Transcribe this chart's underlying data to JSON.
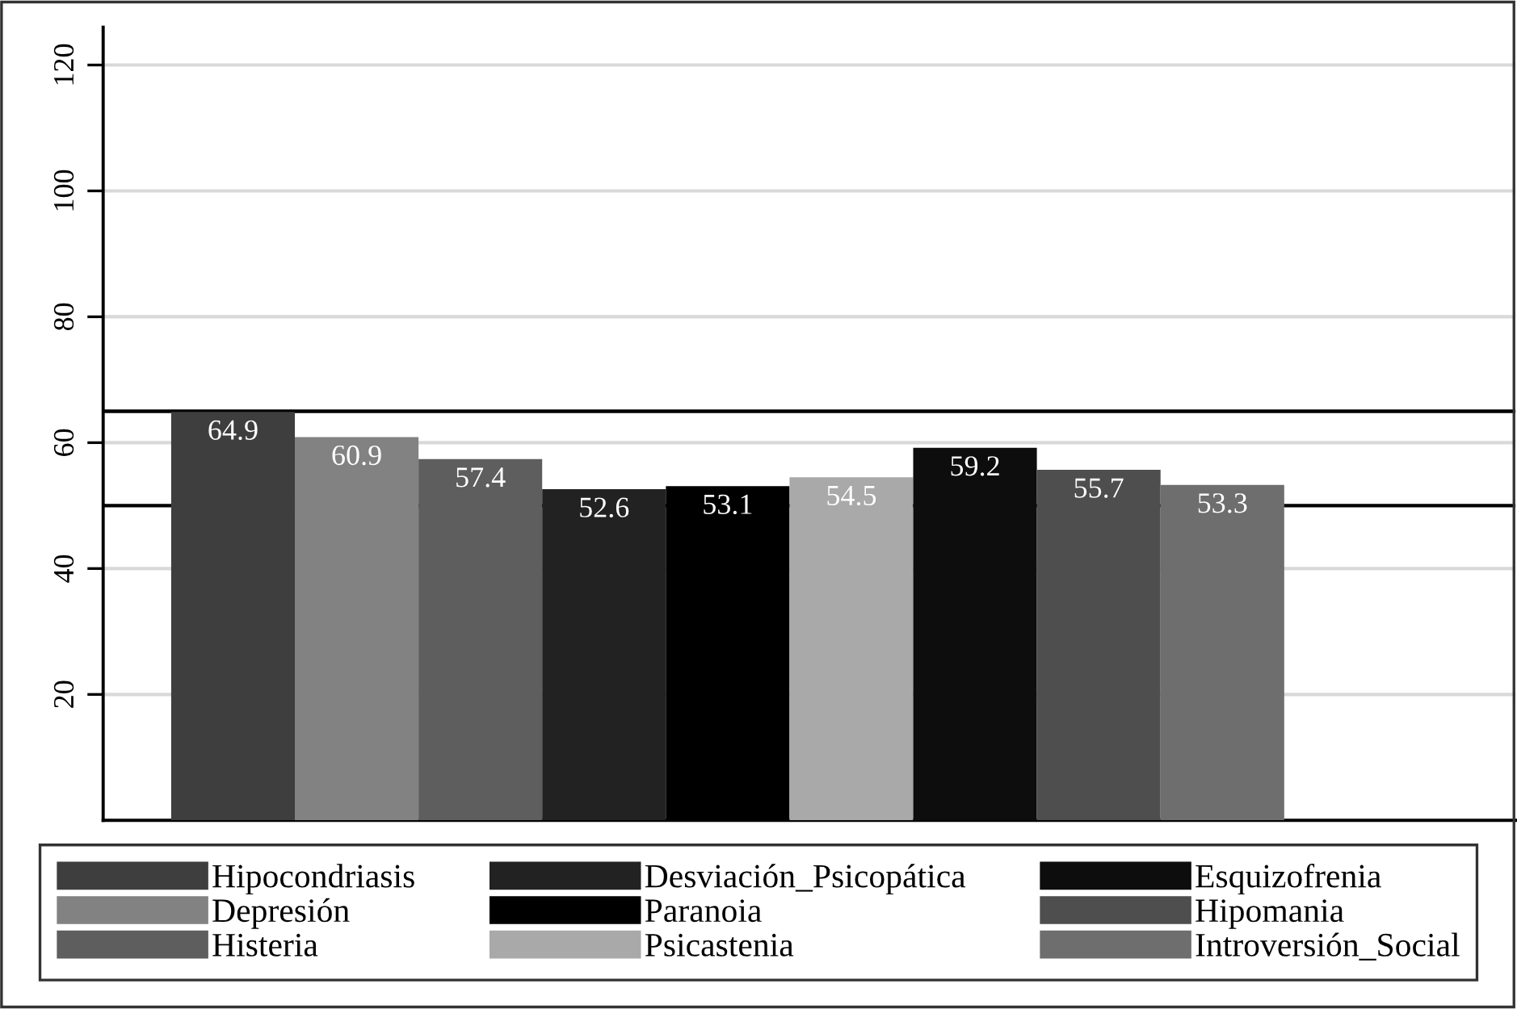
{
  "chart_data": {
    "type": "bar",
    "categories": [
      null
    ],
    "series": [
      {
        "name": "Hipocondriasis",
        "color": "#3e3e3e",
        "values": [
          64.9
        ]
      },
      {
        "name": "Depresión",
        "color": "#828282",
        "values": [
          60.9
        ]
      },
      {
        "name": "Histeria",
        "color": "#5e5e5e",
        "values": [
          57.4
        ]
      },
      {
        "name": "Desviación_Psicopática",
        "color": "#222222",
        "values": [
          52.6
        ]
      },
      {
        "name": "Paranoia",
        "color": "#000000",
        "values": [
          53.1
        ]
      },
      {
        "name": "Psicastenia",
        "color": "#a9a9a9",
        "values": [
          54.5
        ]
      },
      {
        "name": "Esquizofrenia",
        "color": "#0d0d0d",
        "values": [
          59.2
        ]
      },
      {
        "name": "Hipomania",
        "color": "#4e4e4e",
        "values": [
          55.7
        ]
      },
      {
        "name": "Introversión_Social",
        "color": "#6e6e6e",
        "values": [
          53.3
        ]
      }
    ],
    "ylim": [
      0,
      126
    ],
    "yticks": [
      20,
      40,
      60,
      80,
      100,
      120
    ],
    "ref_lines": [
      {
        "axis": "y",
        "value": 65,
        "color": "#000000"
      },
      {
        "axis": "y",
        "value": 50,
        "color": "#000000"
      }
    ],
    "data_labels": true,
    "grid": "y",
    "legend": "bottom",
    "tick_labels": "y"
  }
}
